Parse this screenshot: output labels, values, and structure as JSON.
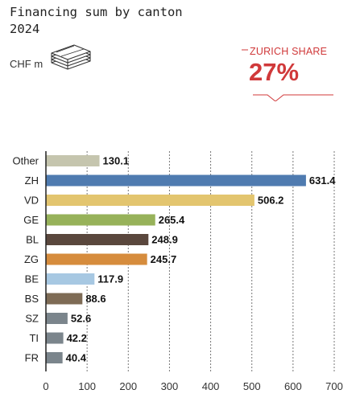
{
  "header": {
    "title_line1": "Financing sum by canton",
    "title_line2": "2024",
    "unit_label": "CHF m"
  },
  "callout": {
    "label": "ZURICH SHARE",
    "value": "27%",
    "color": "#d0393a"
  },
  "icons": {
    "money": "banknote-stack-icon"
  },
  "chart_data": {
    "type": "bar",
    "orientation": "horizontal",
    "categories": [
      "Other",
      "ZH",
      "VD",
      "GE",
      "BL",
      "ZG",
      "BE",
      "BS",
      "SZ",
      "TI",
      "FR"
    ],
    "values": [
      130.1,
      631.4,
      506.2,
      265.4,
      248.9,
      245.7,
      117.9,
      88.6,
      52.6,
      42.2,
      40.4
    ],
    "value_labels": [
      "130.1",
      "631.4",
      "506.2",
      "265.4",
      "248.9",
      "245.7",
      "117.9",
      "88.6",
      "52.6",
      "42.2",
      "40.4"
    ],
    "colors": [
      "#c5c5ae",
      "#4f7bb0",
      "#e3c56f",
      "#97b25a",
      "#5a473d",
      "#d68c3d",
      "#a7c8e2",
      "#7e6b55",
      "#7b858c",
      "#7b858c",
      "#7b858c"
    ],
    "xlim": [
      0,
      700
    ],
    "xticks": [
      0,
      100,
      200,
      300,
      400,
      500,
      600,
      700
    ],
    "xtick_labels": [
      "0",
      "100",
      "200",
      "300",
      "400",
      "500",
      "600",
      "700"
    ],
    "grid": "vertical dotted",
    "unit": "CHF m"
  }
}
